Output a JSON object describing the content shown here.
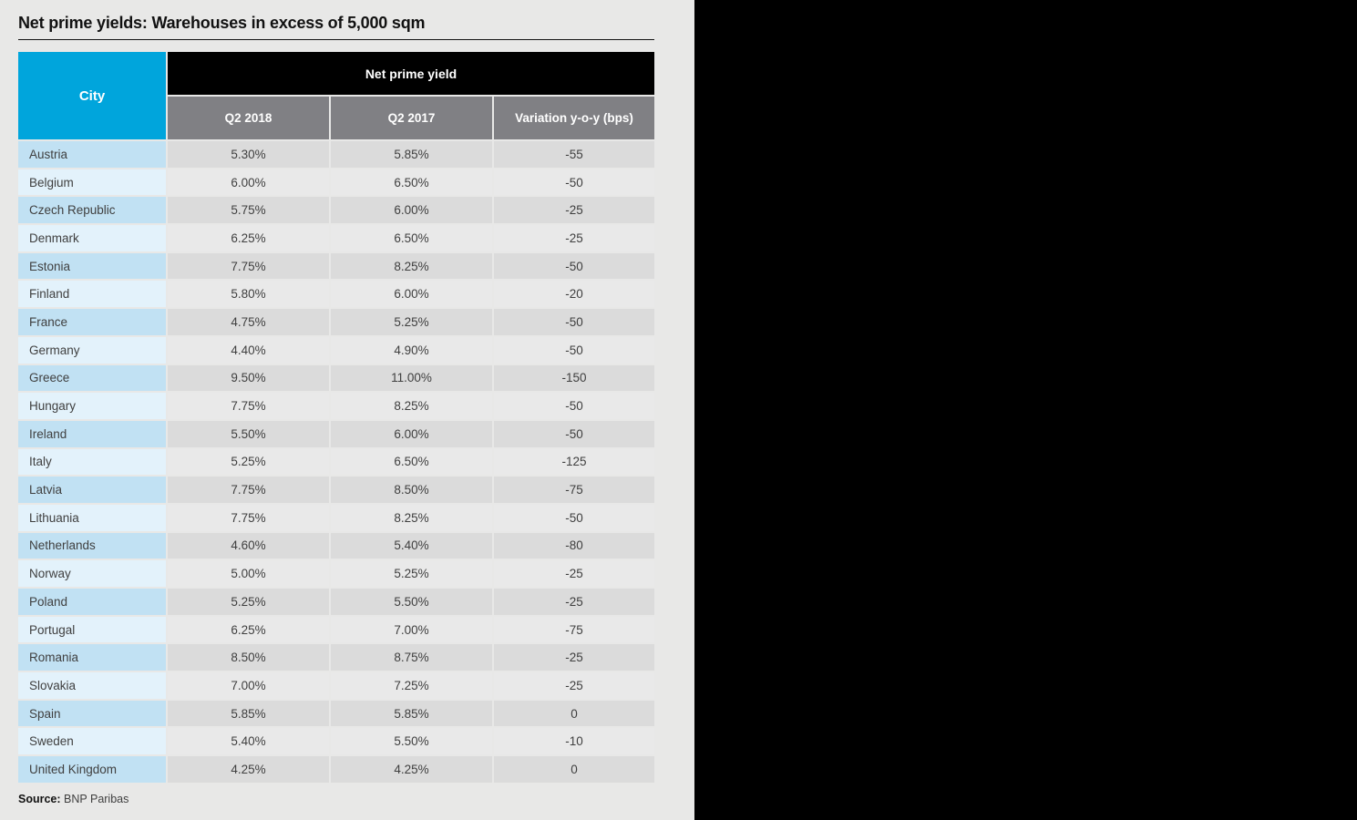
{
  "page": {
    "background_left": "#E8E8E7",
    "side_panel_color": "#000000"
  },
  "title": "Net prime yields: Warehouses in excess of 5,000 sqm",
  "source": {
    "label": "Source:",
    "text": "BNP Paribas"
  },
  "table_colors": {
    "city_header_bg": "#00A5DC",
    "group_header_bg": "#000000",
    "subheader_bg": "#808084",
    "row_odd_city_bg": "#C1E1F3",
    "row_odd_data_bg": "#DBDBDB",
    "row_even_city_bg": "#E3F2FB",
    "row_even_data_bg": "#E9E9E9",
    "body_text": "#3F3F3F",
    "header_text": "#FFFFFF"
  },
  "chart_data": {
    "type": "table",
    "title": "Net prime yields: Warehouses in excess of 5,000 sqm",
    "group_header": "Net prime yield",
    "columns": [
      "City",
      "Q2 2018",
      "Q2 2017",
      "Variation y-o-y (bps)"
    ],
    "rows": [
      [
        "Austria",
        "5.30%",
        "5.85%",
        "-55"
      ],
      [
        "Belgium",
        "6.00%",
        "6.50%",
        "-50"
      ],
      [
        "Czech Republic",
        "5.75%",
        "6.00%",
        "-25"
      ],
      [
        "Denmark",
        "6.25%",
        "6.50%",
        "-25"
      ],
      [
        "Estonia",
        "7.75%",
        "8.25%",
        "-50"
      ],
      [
        "Finland",
        "5.80%",
        "6.00%",
        "-20"
      ],
      [
        "France",
        "4.75%",
        "5.25%",
        "-50"
      ],
      [
        "Germany",
        "4.40%",
        "4.90%",
        "-50"
      ],
      [
        "Greece",
        "9.50%",
        "11.00%",
        "-150"
      ],
      [
        "Hungary",
        "7.75%",
        "8.25%",
        "-50"
      ],
      [
        "Ireland",
        "5.50%",
        "6.00%",
        "-50"
      ],
      [
        "Italy",
        "5.25%",
        "6.50%",
        "-125"
      ],
      [
        "Latvia",
        "7.75%",
        "8.50%",
        "-75"
      ],
      [
        "Lithuania",
        "7.75%",
        "8.25%",
        "-50"
      ],
      [
        "Netherlands",
        "4.60%",
        "5.40%",
        "-80"
      ],
      [
        "Norway",
        "5.00%",
        "5.25%",
        "-25"
      ],
      [
        "Poland",
        "5.25%",
        "5.50%",
        "-25"
      ],
      [
        "Portugal",
        "6.25%",
        "7.00%",
        "-75"
      ],
      [
        "Romania",
        "8.50%",
        "8.75%",
        "-25"
      ],
      [
        "Slovakia",
        "7.00%",
        "7.25%",
        "-25"
      ],
      [
        "Spain",
        "5.85%",
        "5.85%",
        "0"
      ],
      [
        "Sweden",
        "5.40%",
        "5.50%",
        "-10"
      ],
      [
        "United Kingdom",
        "4.25%",
        "4.25%",
        "0"
      ]
    ],
    "source": "BNP Paribas"
  }
}
